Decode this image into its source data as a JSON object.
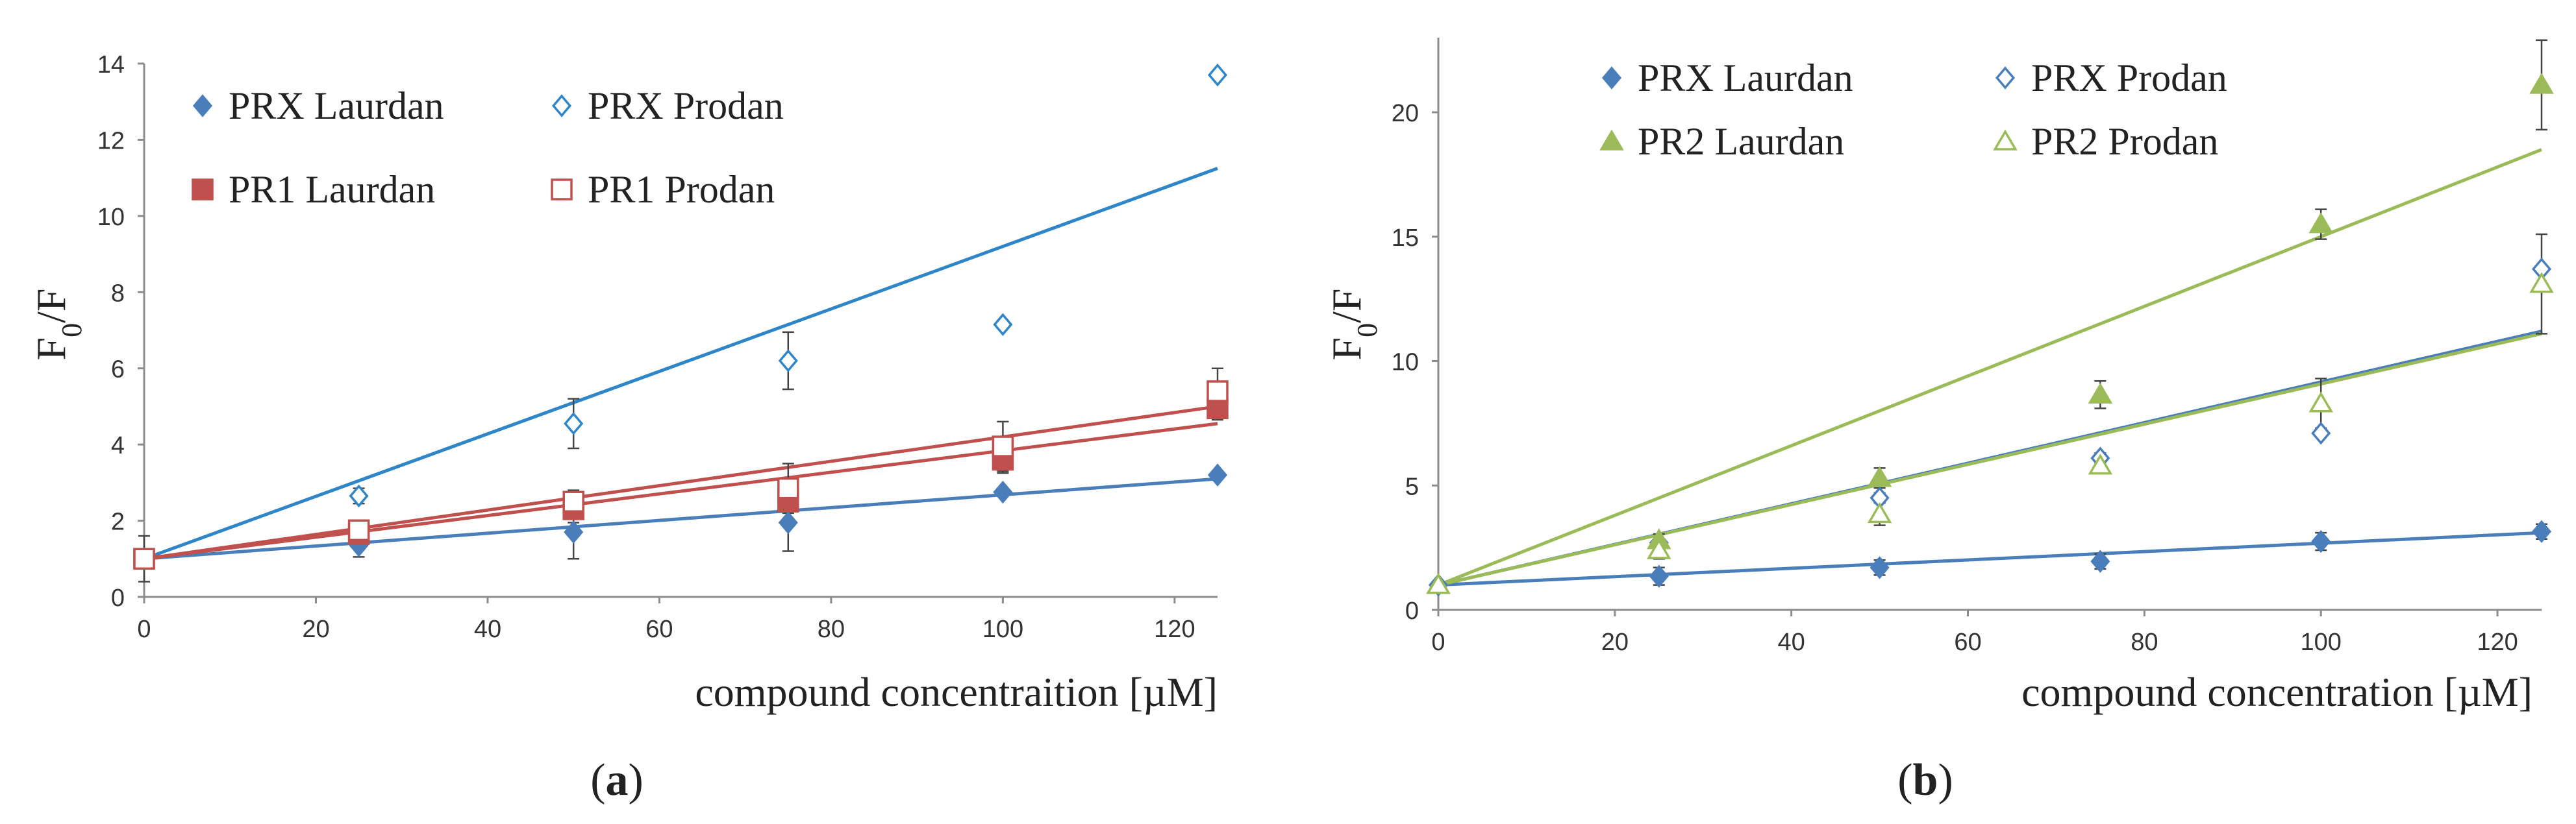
{
  "chart_data": [
    {
      "type": "scatter",
      "panel_label_text": "a",
      "xlabel": "compound concentraition [µM]",
      "ylabel_main": "F",
      "ylabel_sub": "0",
      "ylabel_tail": "/F",
      "xlim": [
        0,
        125
      ],
      "ylim": [
        0,
        14
      ],
      "x_ticks": [
        0,
        20,
        40,
        60,
        80,
        100,
        120
      ],
      "y_ticks": [
        0,
        2,
        4,
        6,
        8,
        10,
        12,
        14
      ],
      "grid": false,
      "legend_position": "top-left",
      "x": [
        0,
        25,
        50,
        75,
        100,
        125
      ],
      "series": [
        {
          "name": "PRX Laurdan",
          "color": "#4a7ebb",
          "marker": "diamond-filled",
          "values": [
            1.0,
            1.35,
            1.7,
            1.95,
            2.75,
            3.2
          ],
          "errors": [
            0.6,
            0.3,
            0.7,
            0.75,
            0.1,
            0.1
          ],
          "fit": [
            1.0,
            3.1
          ]
        },
        {
          "name": "PRX Prodan",
          "color": "#2e86c8",
          "marker": "diamond-open",
          "values": [
            1.0,
            2.65,
            4.55,
            6.2,
            7.15,
            13.7
          ],
          "errors": [
            0.1,
            0.2,
            0.65,
            0.75,
            0.1,
            0.1
          ],
          "fit": [
            1.0,
            11.25
          ]
        },
        {
          "name": "PR1 Laurdan",
          "color": "#c0504d",
          "marker": "square-filled",
          "values": [
            1.0,
            1.65,
            2.3,
            2.5,
            3.6,
            4.95
          ],
          "errors": [
            0.1,
            0.15,
            0.35,
            0.45,
            0.35,
            0.3
          ],
          "fit": [
            1.0,
            4.55
          ]
        },
        {
          "name": "PR1 Prodan",
          "color": "#c0504d",
          "marker": "square-open",
          "values": [
            1.0,
            1.75,
            2.5,
            2.85,
            3.95,
            5.4
          ],
          "errors": [
            0.1,
            0.2,
            0.3,
            0.65,
            0.65,
            0.6
          ],
          "fit": [
            1.0,
            5.0
          ]
        }
      ]
    },
    {
      "type": "scatter",
      "panel_label_text": "b",
      "xlabel": "compound concentration [µM]",
      "ylabel_main": "F",
      "ylabel_sub": "0",
      "ylabel_tail": "/F",
      "xlim": [
        0,
        125
      ],
      "ylim": [
        0,
        23
      ],
      "x_ticks": [
        0,
        20,
        40,
        60,
        80,
        100,
        120
      ],
      "y_ticks": [
        0,
        5,
        10,
        15,
        20
      ],
      "grid": false,
      "legend_position": "top-left",
      "x": [
        0,
        25,
        50,
        75,
        100,
        125
      ],
      "series": [
        {
          "name": "PRX Laurdan",
          "color": "#4a7ebb",
          "marker": "diamond-filled",
          "values": [
            1.0,
            1.35,
            1.7,
            1.95,
            2.75,
            3.15
          ],
          "errors": [
            0.05,
            0.35,
            0.3,
            0.3,
            0.35,
            0.3
          ],
          "fit": [
            1.0,
            3.1
          ]
        },
        {
          "name": "PRX Prodan",
          "color": "#4a7ebb",
          "marker": "diamond-open",
          "values": [
            1.0,
            2.7,
            4.5,
            6.1,
            7.1,
            13.7
          ],
          "errors": [
            0.05,
            0.1,
            0.2,
            0.2,
            0.1,
            0.1
          ],
          "fit": [
            1.0,
            11.2
          ]
        },
        {
          "name": "PR2 Laurdan",
          "color": "#9bbb59",
          "marker": "triangle-filled",
          "values": [
            1.0,
            2.8,
            5.3,
            8.65,
            15.5,
            21.1
          ],
          "errors": [
            0.1,
            0.25,
            0.4,
            0.55,
            0.6,
            1.8
          ],
          "fit": [
            1.0,
            18.5
          ]
        },
        {
          "name": "PR2 Prodan",
          "color": "#9bbb59",
          "marker": "triangle-open",
          "values": [
            1.0,
            2.4,
            3.85,
            5.8,
            8.3,
            13.1
          ],
          "errors": [
            0.05,
            0.35,
            0.45,
            0.3,
            1.0,
            2.0
          ],
          "fit": [
            1.0,
            11.1
          ]
        }
      ]
    }
  ]
}
